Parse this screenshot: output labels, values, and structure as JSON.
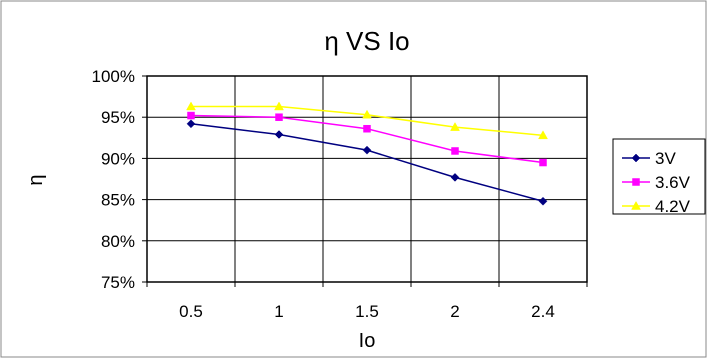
{
  "chart_data": {
    "type": "line",
    "title": "η VS Io",
    "xlabel": "Io",
    "ylabel": "η",
    "categories": [
      "0.5",
      "1",
      "1.5",
      "2",
      "2.4"
    ],
    "y_ticks": [
      "75%",
      "80%",
      "85%",
      "90%",
      "95%",
      "100%"
    ],
    "ylim": [
      75,
      100
    ],
    "grid": true,
    "legend_position": "right",
    "series": [
      {
        "name": "3V",
        "color": "#000080",
        "marker": "diamond",
        "values": [
          94.2,
          92.9,
          91.0,
          87.7,
          84.8
        ]
      },
      {
        "name": "3.6V",
        "color": "#FF00FF",
        "marker": "square",
        "values": [
          95.2,
          95.0,
          93.6,
          90.9,
          89.5
        ]
      },
      {
        "name": "4.2V",
        "color": "#FFFF00",
        "marker": "triangle",
        "values": [
          96.3,
          96.3,
          95.3,
          93.8,
          92.8
        ]
      }
    ]
  }
}
